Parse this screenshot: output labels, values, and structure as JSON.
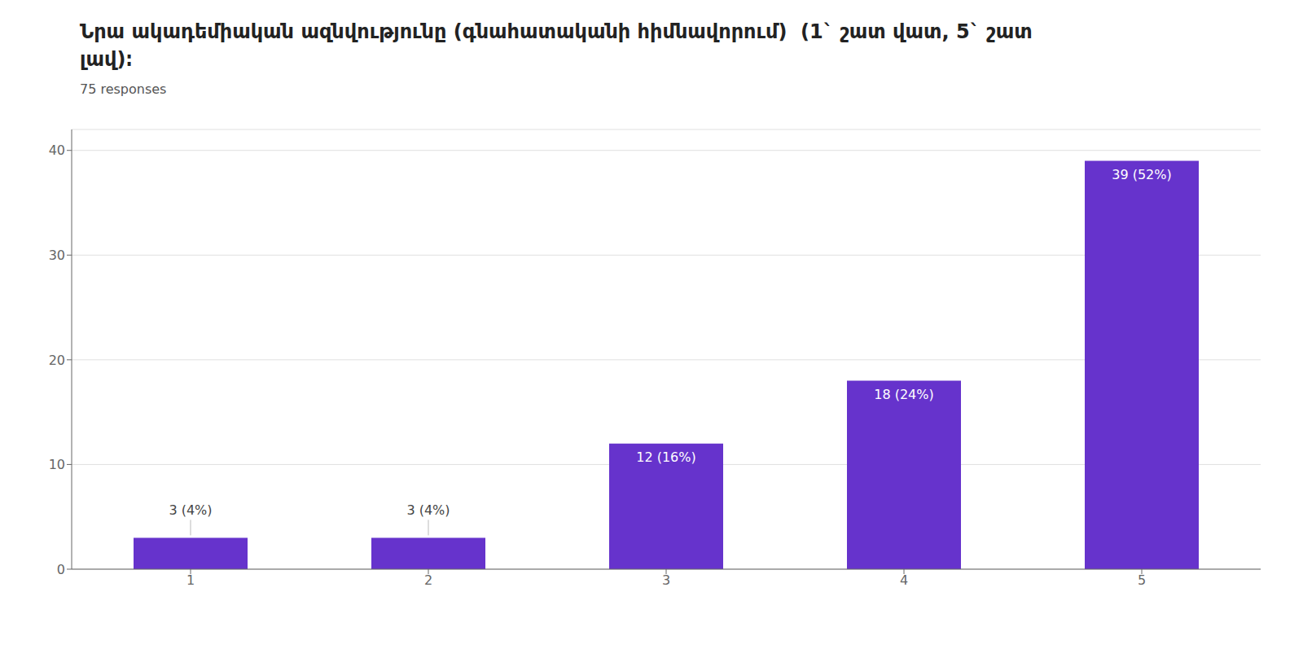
{
  "chart_data": {
    "type": "bar",
    "title": "Նրա ակադեմիական ազնվությունը (գնահատականի հիմնավորում)  (1` շատ վատ, 5` շատ\nլավ)։",
    "subtitle": "75 responses",
    "categories": [
      "1",
      "2",
      "3",
      "4",
      "5"
    ],
    "values": [
      3,
      3,
      12,
      18,
      39
    ],
    "value_labels": [
      "3 (4%)",
      "3 (4%)",
      "12 (16%)",
      "18 (24%)",
      "39 (52%)"
    ],
    "data_labels": true,
    "color": "#6633cc",
    "ylim": [
      0,
      42
    ],
    "yticks": [
      0,
      10,
      20,
      30,
      40
    ],
    "grid": true
  }
}
